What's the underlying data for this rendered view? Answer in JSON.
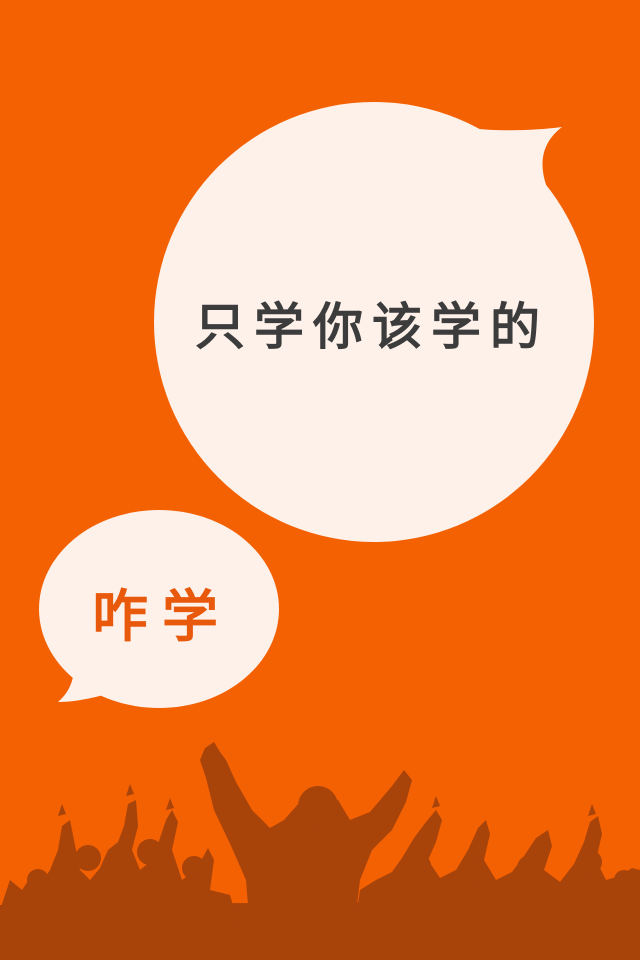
{
  "splash": {
    "slogan": "只学你该学的",
    "app_name": "咋学"
  },
  "colors": {
    "background": "#f46103",
    "bubble": "#fdf1ea",
    "slogan_text": "#3c3c3c",
    "app_name_text": "#e8590c",
    "crowd_silhouette": "#a8430a"
  },
  "icons": {
    "large_bubble": "speech-bubble-icon",
    "small_bubble": "speech-bubble-icon",
    "crowd": "cheering-crowd-silhouette"
  }
}
